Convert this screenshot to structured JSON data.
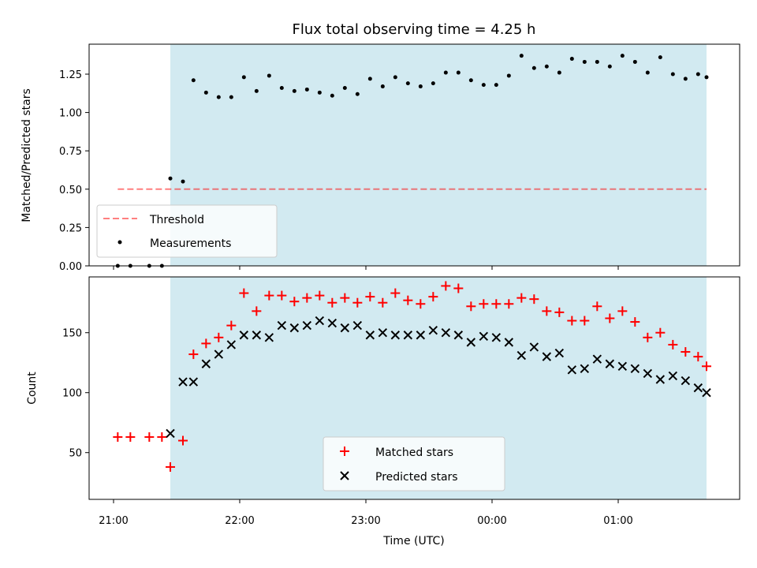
{
  "chart_data": [
    {
      "type": "scatter",
      "title": "Flux total observing time = 4.25 h",
      "xlabel": "",
      "ylabel": "Matched/Predicted stars",
      "ylim": [
        0,
        1.44
      ],
      "yticks": [
        "0.00",
        "0.25",
        "0.50",
        "0.75",
        "1.00",
        "1.25"
      ],
      "shaded_region": {
        "x_start": "21:27",
        "x_end": "01:42",
        "color": "#add8e6"
      },
      "threshold": {
        "name": "Threshold",
        "value": 0.5,
        "x_start": "21:02",
        "x_end": "01:42",
        "color": "#ff0000"
      },
      "series": [
        {
          "name": "Measurements",
          "color": "#000000",
          "x": [
            "21:02",
            "21:08",
            "21:17",
            "21:23",
            "21:27",
            "21:33",
            "21:38",
            "21:44",
            "21:50",
            "21:56",
            "22:02",
            "22:08",
            "22:14",
            "22:20",
            "22:26",
            "22:32",
            "22:38",
            "22:44",
            "22:50",
            "22:56",
            "23:02",
            "23:08",
            "23:14",
            "23:20",
            "23:26",
            "23:32",
            "23:38",
            "23:44",
            "23:50",
            "23:56",
            "00:02",
            "00:08",
            "00:14",
            "00:20",
            "00:26",
            "00:32",
            "00:38",
            "00:44",
            "00:50",
            "00:56",
            "01:02",
            "01:08",
            "01:14",
            "01:20",
            "01:26",
            "01:32",
            "01:38",
            "01:42"
          ],
          "values": [
            0,
            0,
            0,
            0,
            0.57,
            0.55,
            1.21,
            1.13,
            1.1,
            1.1,
            1.23,
            1.14,
            1.24,
            1.16,
            1.14,
            1.15,
            1.13,
            1.11,
            1.16,
            1.12,
            1.22,
            1.17,
            1.23,
            1.19,
            1.17,
            1.19,
            1.26,
            1.26,
            1.21,
            1.18,
            1.18,
            1.24,
            1.37,
            1.29,
            1.3,
            1.26,
            1.35,
            1.33,
            1.33,
            1.3,
            1.37,
            1.33,
            1.26,
            1.36,
            1.25,
            1.22,
            1.25,
            1.23
          ]
        }
      ]
    },
    {
      "type": "scatter",
      "xlabel": "Time (UTC)",
      "ylabel": "Count",
      "ylim": [
        11,
        189
      ],
      "yticks": [
        "50",
        "100",
        "150"
      ],
      "xticks": [
        "21:00",
        "22:00",
        "23:00",
        "00:00",
        "01:00"
      ],
      "shaded_region": {
        "x_start": "21:27",
        "x_end": "01:42",
        "color": "#add8e6"
      },
      "series": [
        {
          "name": "Matched stars",
          "color": "#ff0000",
          "x": [
            "21:02",
            "21:08",
            "21:17",
            "21:23",
            "21:27",
            "21:33",
            "21:38",
            "21:44",
            "21:50",
            "21:56",
            "22:02",
            "22:08",
            "22:14",
            "22:20",
            "22:26",
            "22:32",
            "22:38",
            "22:44",
            "22:50",
            "22:56",
            "23:02",
            "23:08",
            "23:14",
            "23:20",
            "23:26",
            "23:32",
            "23:38",
            "23:44",
            "23:50",
            "23:56",
            "00:02",
            "00:08",
            "00:14",
            "00:20",
            "00:26",
            "00:32",
            "00:38",
            "00:44",
            "00:50",
            "00:56",
            "01:02",
            "01:08",
            "01:14",
            "01:20",
            "01:26",
            "01:32",
            "01:38",
            "01:42"
          ],
          "values": [
            63,
            63,
            63,
            63,
            38,
            60,
            132,
            141,
            146,
            156,
            183,
            168,
            181,
            181,
            176,
            179,
            181,
            175,
            179,
            175,
            180,
            175,
            183,
            177,
            174,
            180,
            189,
            187,
            172,
            174,
            174,
            174,
            179,
            178,
            168,
            167,
            160,
            160,
            172,
            162,
            168,
            159,
            146,
            150,
            140,
            134,
            130,
            122
          ]
        },
        {
          "name": "Predicted stars",
          "color": "#000000",
          "x": [
            "21:27",
            "21:33",
            "21:38",
            "21:44",
            "21:50",
            "21:56",
            "22:02",
            "22:08",
            "22:14",
            "22:20",
            "22:26",
            "22:32",
            "22:38",
            "22:44",
            "22:50",
            "22:56",
            "23:02",
            "23:08",
            "23:14",
            "23:20",
            "23:26",
            "23:32",
            "23:38",
            "23:44",
            "23:50",
            "23:56",
            "00:02",
            "00:08",
            "00:14",
            "00:20",
            "00:26",
            "00:32",
            "00:38",
            "00:44",
            "00:50",
            "00:56",
            "01:02",
            "01:08",
            "01:14",
            "01:20",
            "01:26",
            "01:32",
            "01:38",
            "01:42"
          ],
          "values": [
            66,
            109,
            109,
            124,
            132,
            140,
            148,
            148,
            146,
            156,
            154,
            156,
            160,
            158,
            154,
            156,
            148,
            150,
            148,
            148,
            148,
            152,
            150,
            148,
            142,
            147,
            146,
            142,
            131,
            138,
            130,
            133,
            119,
            120,
            128,
            124,
            122,
            120,
            116,
            111,
            114,
            110,
            104,
            100
          ]
        }
      ]
    }
  ],
  "legend": {
    "top": [
      "Threshold",
      "Measurements"
    ],
    "bottom": [
      "Matched stars",
      "Predicted stars"
    ]
  }
}
